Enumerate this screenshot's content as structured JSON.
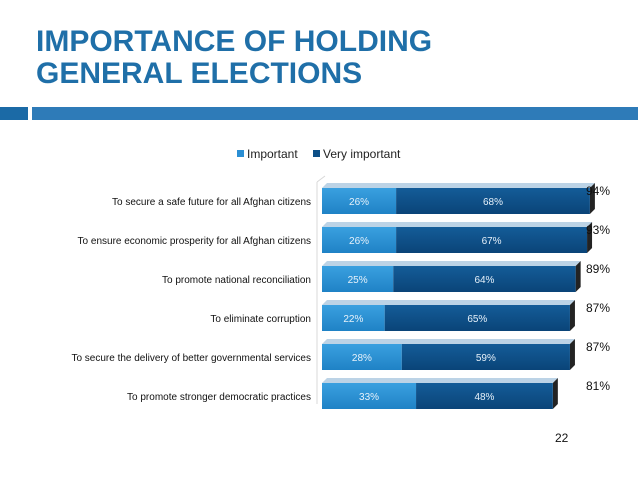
{
  "slide": {
    "title_line1": "IMPORTANCE OF HOLDING",
    "title_line2": "GENERAL ELECTIONS",
    "slide_number": "22"
  },
  "colors": {
    "title": "#1f6fa8",
    "accent_bar": "#2e7bb8",
    "important": "#2b8fd4",
    "very_important": "#0d4f87"
  },
  "chart_data": {
    "type": "bar",
    "orientation": "horizontal",
    "stacked": true,
    "legend_position": "top",
    "categories": [
      "To secure a safe future for all Afghan citizens",
      "To ensure economic prosperity for all Afghan citizens",
      "To promote national reconciliation",
      "To eliminate corruption",
      "To secure the delivery of better governmental services",
      "To promote stronger democratic practices"
    ],
    "series": [
      {
        "name": "Important",
        "values": [
          26,
          26,
          25,
          22,
          28,
          33
        ],
        "labels": [
          "26%",
          "26%",
          "25%",
          "22%",
          "28%",
          "33%"
        ]
      },
      {
        "name": "Very important",
        "values": [
          68,
          67,
          64,
          65,
          59,
          48
        ],
        "labels": [
          "68%",
          "67%",
          "64%",
          "65%",
          "59%",
          "48%"
        ]
      }
    ],
    "totals": [
      "94%",
      "93%",
      "89%",
      "87%",
      "87%",
      "81%"
    ],
    "xlim": [
      0,
      100
    ],
    "grid": false
  }
}
